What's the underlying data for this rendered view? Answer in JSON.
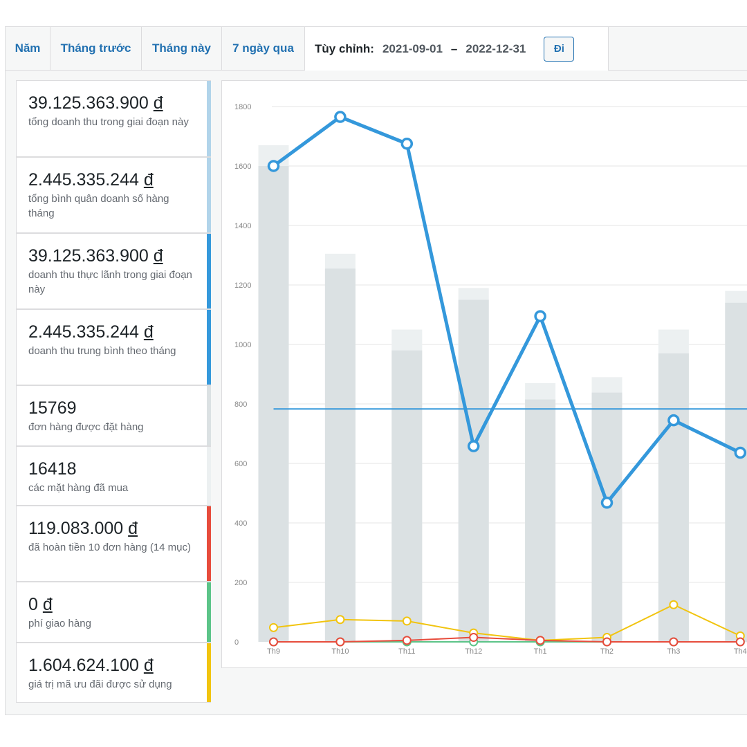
{
  "tabs": [
    "Năm",
    "Tháng trước",
    "Tháng này",
    "7 ngày qua"
  ],
  "custom_range": {
    "label": "Tùy chỉnh:",
    "start": "2021-09-01",
    "separator": "–",
    "end": "2022-12-31",
    "go_label": "Đi"
  },
  "stats": [
    {
      "value": "39.125.363.900",
      "currency": "đ",
      "desc": "tổng doanh thu trong giai đoạn này",
      "color": "#b1d4ea"
    },
    {
      "value": "2.445.335.244",
      "currency": "đ",
      "desc": "tổng bình quân doanh số hàng tháng",
      "color": "#b1d4ea"
    },
    {
      "value": "39.125.363.900",
      "currency": "đ",
      "desc": "doanh thu thực lãnh trong giai đoạn này",
      "color": "#3498db"
    },
    {
      "value": "2.445.335.244",
      "currency": "đ",
      "desc": "doanh thu trung bình theo tháng",
      "color": "#3498db"
    },
    {
      "value": "15769",
      "currency": "",
      "desc": "đơn hàng được đặt hàng",
      "color": "#dbe1e3"
    },
    {
      "value": "16418",
      "currency": "",
      "desc": "các mặt hàng đã mua",
      "color": "#ecf0f1"
    },
    {
      "value": "119.083.000",
      "currency": "đ",
      "desc": "đã hoàn tiền 10 đơn hàng (14 mục)",
      "color": "#e74c3c"
    },
    {
      "value": "0",
      "currency": "đ",
      "desc": "phí giao hàng",
      "color": "#5cc488"
    },
    {
      "value": "1.604.624.100",
      "currency": "đ",
      "desc": "giá trị mã ưu đãi được sử dụng",
      "color": "#f1c40f"
    }
  ],
  "chart_data": {
    "type": "bar",
    "categories": [
      "Th9",
      "Th10",
      "Th11",
      "Th12",
      "Th1",
      "Th2",
      "Th3",
      "Th4"
    ],
    "ylim": [
      0,
      1800
    ],
    "yticks": [
      0,
      200,
      400,
      600,
      800,
      1000,
      1200,
      1400,
      1600,
      1800
    ],
    "grid": true,
    "series": [
      {
        "kind": "bar",
        "values": [
          1670,
          1305,
          1050,
          1190,
          870,
          890,
          1050,
          1180
        ],
        "color": "#ecf0f1"
      },
      {
        "kind": "bar",
        "values": [
          1600,
          1255,
          980,
          1150,
          815,
          838,
          970,
          1140
        ],
        "color": "#dbe1e3"
      },
      {
        "kind": "line",
        "values": [
          1600,
          1765,
          1675,
          658,
          1095,
          468,
          745,
          636
        ],
        "color": "#3498db"
      },
      {
        "kind": "hline",
        "value": 783,
        "color": "#3498db"
      },
      {
        "kind": "line",
        "values": [
          48,
          75,
          70,
          30,
          5,
          15,
          125,
          20
        ],
        "color": "#f1c40f"
      },
      {
        "kind": "line",
        "values": [
          0,
          0,
          0,
          0,
          0,
          0,
          0,
          0
        ],
        "color": "#5cc488"
      },
      {
        "kind": "line",
        "values": [
          0,
          0,
          5,
          15,
          5,
          0,
          0,
          0
        ],
        "color": "#e74c3c"
      }
    ]
  }
}
